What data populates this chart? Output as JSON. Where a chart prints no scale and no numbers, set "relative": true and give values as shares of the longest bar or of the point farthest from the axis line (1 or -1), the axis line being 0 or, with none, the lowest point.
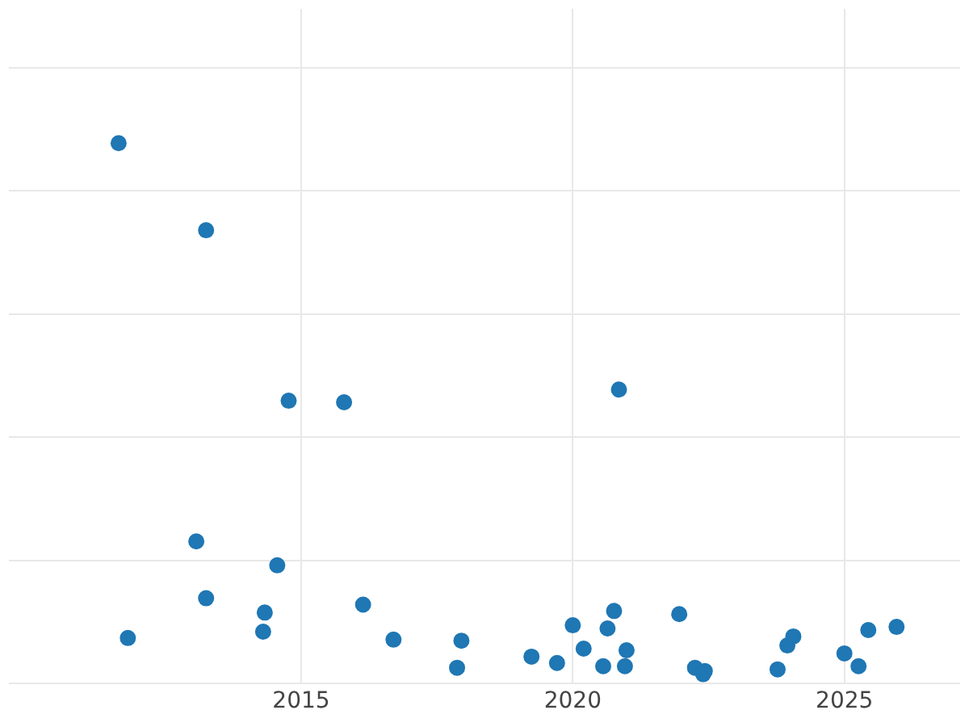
{
  "chart_data": {
    "type": "scatter",
    "relative": true,
    "color": "#1f77b4",
    "marker": "circle",
    "grid": true,
    "legend": false,
    "tick_labels": "x",
    "xlim": [
      2009.62,
      2027.13
    ],
    "xticks": [
      2015,
      2020,
      2025
    ],
    "x": [
      2011.64,
      2013.25,
      2014.77,
      2015.79,
      2020.85,
      2013.07,
      2014.56,
      2011.81,
      2013.25,
      2014.33,
      2014.3,
      2016.14,
      2016.7,
      2017.87,
      2017.95,
      2019.24,
      2019.71,
      2020.0,
      2020.2,
      2020.56,
      2020.64,
      2020.76,
      2020.96,
      2020.99,
      2021.96,
      2022.25,
      2022.4,
      2022.43,
      2023.77,
      2023.95,
      2024.06,
      2025.0,
      2025.26,
      2025.44,
      2025.96
    ],
    "values": [
      1.0,
      0.836,
      0.515,
      0.512,
      0.536,
      0.25,
      0.205,
      0.068,
      0.143,
      0.116,
      0.08,
      0.131,
      0.065,
      0.012,
      0.063,
      0.033,
      0.021,
      0.092,
      0.048,
      0.015,
      0.086,
      0.119,
      0.015,
      0.045,
      0.113,
      0.012,
      0.0,
      0.006,
      0.009,
      0.054,
      0.071,
      0.039,
      0.015,
      0.083,
      0.089
    ]
  }
}
